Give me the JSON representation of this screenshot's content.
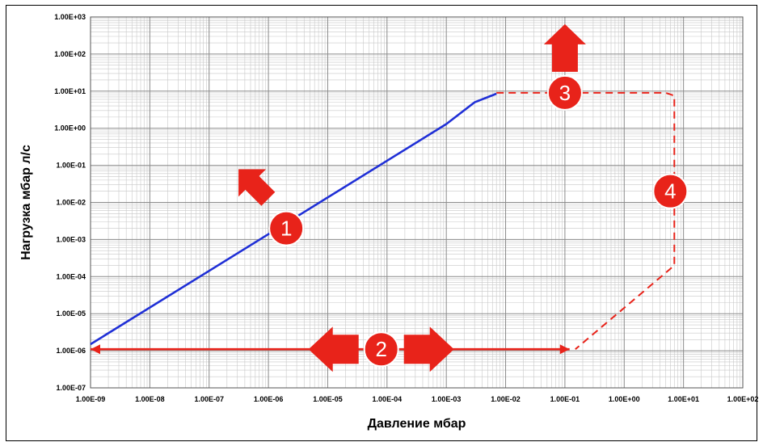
{
  "chart_data": {
    "type": "line",
    "title": "",
    "xlabel": "Давление мбар",
    "ylabel": "Нагрузка мбар л/с",
    "x_scale": "log",
    "y_scale": "log",
    "xlim": [
      1e-09,
      100
    ],
    "ylim": [
      1e-07,
      1000
    ],
    "grid": true,
    "x_tick_labels": [
      "1.00E-09",
      "1.00E-08",
      "1.00E-07",
      "1.00E-06",
      "1.00E-05",
      "1.00E-04",
      "1.00E-03",
      "1.00E-02",
      "1.00E-01",
      "1.00E+00",
      "1.00E+01",
      "1.00E+02"
    ],
    "y_tick_labels": [
      "1.00E-07",
      "1.00E-06",
      "1.00E-05",
      "1.00E-04",
      "1.00E-03",
      "1.00E-02",
      "1.00E-01",
      "1.00E+00",
      "1.00E+01",
      "1.00E+02",
      "1.00E+03"
    ],
    "series": [
      {
        "color": "#1f2fd6",
        "style": "solid",
        "points": [
          [
            1e-09,
            1.5e-06
          ],
          [
            0.001,
            1.3
          ],
          [
            0.003,
            5
          ],
          [
            0.007,
            8.5
          ]
        ]
      },
      {
        "color": "#e8231a",
        "style": "dashed",
        "points": [
          [
            0.007,
            9
          ],
          [
            5,
            9
          ],
          [
            7,
            7.5
          ],
          [
            7,
            0.0002
          ],
          [
            0.15,
            1.1e-06
          ]
        ]
      },
      {
        "color": "#e8231a",
        "style": "solid",
        "points": [
          [
            1e-09,
            1.1e-06
          ],
          [
            0.12,
            1.1e-06
          ]
        ]
      }
    ],
    "annotations": [
      {
        "label": "1",
        "x": 2e-06,
        "y": 0.002,
        "arrow": "up-left"
      },
      {
        "label": "2",
        "x": 8e-05,
        "y": 1.1e-06,
        "arrow": "left-right"
      },
      {
        "label": "3",
        "x": 0.1,
        "y": 9,
        "arrow": "up"
      },
      {
        "label": "4",
        "x": 6,
        "y": 0.02,
        "arrow": "none"
      }
    ],
    "colors": {
      "badge": "#e8231a",
      "curve": "#1f2fd6"
    }
  }
}
